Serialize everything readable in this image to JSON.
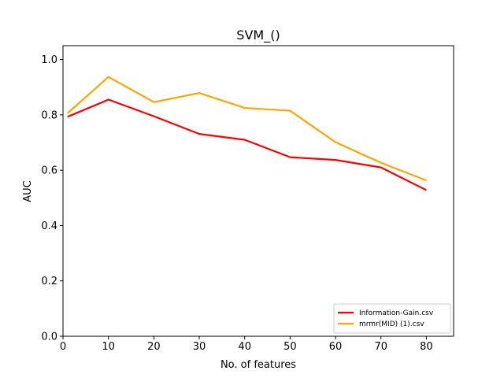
{
  "chart_data": {
    "type": "line",
    "title": "SVM_()",
    "xlabel": "No. of features",
    "ylabel": "AUC",
    "xlim": [
      0,
      86
    ],
    "ylim": [
      0,
      1.05
    ],
    "xticks": [
      0,
      10,
      20,
      30,
      40,
      50,
      60,
      70,
      80
    ],
    "yticks": [
      0.0,
      0.2,
      0.4,
      0.6,
      0.8,
      1.0
    ],
    "xtick_labels": [
      "0",
      "10",
      "20",
      "30",
      "40",
      "50",
      "60",
      "70",
      "80"
    ],
    "ytick_labels": [
      "0.0",
      "0.2",
      "0.4",
      "0.6",
      "0.8",
      "1.0"
    ],
    "grid": false,
    "legend_position": "lower-right",
    "x": [
      1,
      10,
      20,
      30,
      40,
      50,
      60,
      70,
      80
    ],
    "series": [
      {
        "name": "Information-Gain.csv",
        "color": "#ff0000",
        "values": [
          0.793,
          0.855,
          0.795,
          0.731,
          0.71,
          0.647,
          0.637,
          0.61,
          0.528
        ]
      },
      {
        "name": "mrmr(MID) (1).csv",
        "color": "#ffa500",
        "values": [
          0.806,
          0.937,
          0.846,
          0.879,
          0.825,
          0.815,
          0.701,
          0.627,
          0.563
        ]
      }
    ]
  }
}
